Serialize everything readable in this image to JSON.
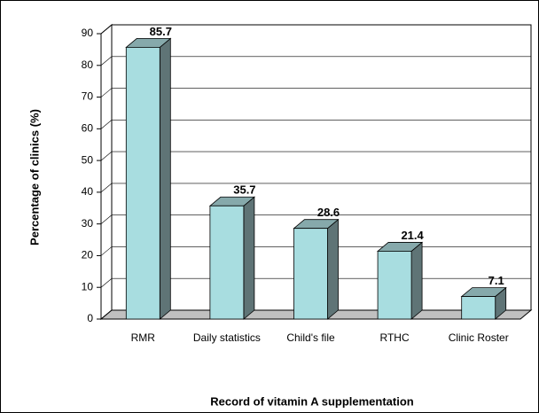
{
  "chart_data": {
    "type": "bar",
    "categories": [
      "RMR",
      "Daily statistics",
      "Child's file",
      "RTHC",
      "Clinic Roster"
    ],
    "values": [
      85.7,
      35.7,
      28.6,
      21.4,
      7.1
    ],
    "color": "#a8dde0",
    "ylabel": "Percentage of clinics (%)",
    "xlabel": "Record of vitamin A supplementation",
    "ylim": [
      0,
      90
    ],
    "yticks": [
      0,
      10,
      20,
      30,
      40,
      50,
      60,
      70,
      80,
      90
    ],
    "grid": true
  }
}
